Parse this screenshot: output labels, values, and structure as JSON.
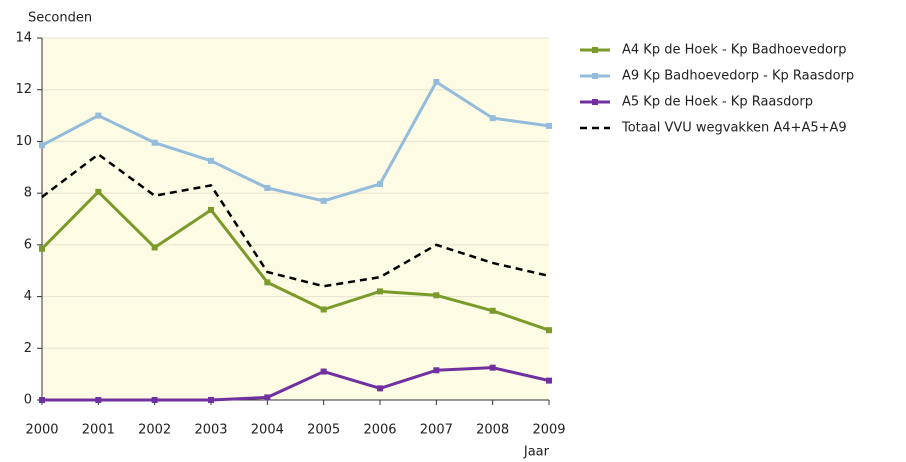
{
  "chart_data": {
    "type": "line",
    "y_label": "Seconden",
    "x_label": "Jaar",
    "x": [
      2000,
      2001,
      2002,
      2003,
      2004,
      2005,
      2006,
      2007,
      2008,
      2009
    ],
    "xlim": [
      2000,
      2009
    ],
    "xticks": [
      2000,
      2001,
      2002,
      2003,
      2004,
      2005,
      2006,
      2007,
      2008,
      2009
    ],
    "ylim": [
      0,
      14
    ],
    "yticks": [
      0,
      2,
      4,
      6,
      8,
      10,
      12,
      14
    ],
    "grid": true,
    "background": "#fdfbe4",
    "legend": "right",
    "series": [
      {
        "name": "A4 Kp de Hoek - Kp Badhoevedorp",
        "color": "#7a9a2a",
        "marker": true,
        "dashed": false,
        "values": [
          5.85,
          8.05,
          5.9,
          7.35,
          4.55,
          3.5,
          4.2,
          4.05,
          3.45,
          2.7
        ]
      },
      {
        "name": "A9 Kp Badhoevedorp - Kp Raasdorp",
        "color": "#93bbdb",
        "marker": true,
        "dashed": false,
        "values": [
          9.85,
          11.0,
          9.95,
          9.25,
          8.2,
          7.7,
          8.35,
          12.3,
          10.9,
          10.6
        ]
      },
      {
        "name": "A5 Kp de Hoek - Kp Raasdorp",
        "color": "#7030a0",
        "marker": true,
        "dashed": false,
        "values": [
          0,
          0,
          0,
          0,
          0.1,
          1.1,
          0.45,
          1.15,
          1.25,
          0.75
        ]
      },
      {
        "name": "Totaal VVU wegvakken A4+A5+A9",
        "color": "#000000",
        "marker": false,
        "dashed": true,
        "values": [
          7.85,
          9.5,
          7.9,
          8.3,
          4.95,
          4.4,
          4.75,
          6.0,
          5.3,
          4.8
        ]
      }
    ]
  }
}
